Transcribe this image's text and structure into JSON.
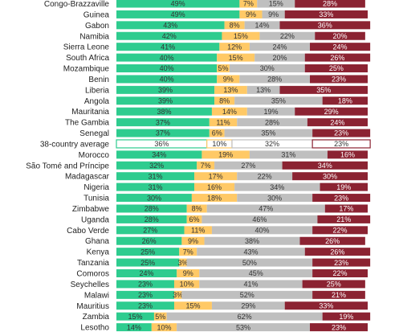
{
  "chart_data": {
    "type": "bar",
    "stacked": "horizontal",
    "xlim": [
      0,
      100
    ],
    "series": [
      {
        "color": "#2ecc8f",
        "values": [
          49,
          49,
          43,
          42,
          41,
          40,
          40,
          40,
          39,
          39,
          38,
          37,
          37,
          36,
          34,
          32,
          31,
          31,
          30,
          28,
          28,
          27,
          26,
          25,
          25,
          24,
          23,
          23,
          23,
          15,
          14
        ]
      },
      {
        "color": "#ffc966",
        "values": [
          7,
          9,
          8,
          15,
          12,
          15,
          5,
          9,
          13,
          8,
          14,
          11,
          6,
          10,
          19,
          7,
          17,
          16,
          18,
          8,
          6,
          11,
          9,
          7,
          3,
          9,
          10,
          3,
          15,
          5,
          10
        ]
      },
      {
        "color": "#bfbfbf",
        "values": [
          15,
          9,
          14,
          22,
          24,
          20,
          30,
          28,
          13,
          35,
          19,
          28,
          35,
          32,
          31,
          27,
          22,
          34,
          30,
          47,
          46,
          40,
          38,
          43,
          50,
          45,
          41,
          52,
          29,
          62,
          53
        ]
      },
      {
        "color": "#8b2332",
        "values": [
          28,
          33,
          36,
          20,
          24,
          26,
          25,
          23,
          35,
          18,
          29,
          24,
          23,
          23,
          16,
          34,
          30,
          19,
          23,
          17,
          21,
          22,
          26,
          26,
          23,
          22,
          25,
          21,
          33,
          19,
          23
        ]
      }
    ],
    "categories": [
      "Congo-Brazzaville",
      "Guinea",
      "Gabon",
      "Namibia",
      "Sierra Leone",
      "South Africa",
      "Mozambique",
      "Benin",
      "Liberia",
      "Angola",
      "Mauritania",
      "The Gambia",
      "Senegal",
      "38-country average",
      "Morocco",
      "São Tomé and Príncipe",
      "Madagascar",
      "Nigeria",
      "Tunisia",
      "Zimbabwe",
      "Uganda",
      "Cabo Verde",
      "Ghana",
      "Kenya",
      "Tanzania",
      "Comoros",
      "Seychelles",
      "Malawi",
      "Mauritius",
      "Zambia",
      "Lesotho"
    ],
    "average_category": "38-country average",
    "colors": {
      "label_on_light": "#333333",
      "label_on_dark": "#ffffff",
      "average_fill": "#ffffff"
    }
  }
}
